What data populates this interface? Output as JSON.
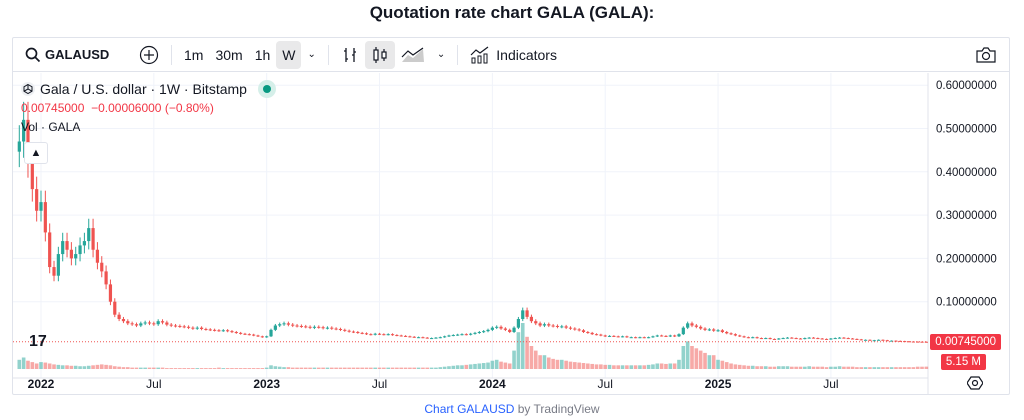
{
  "title": "Quotation rate chart GALA (GALA):",
  "toolbar": {
    "symbol": "GALAUSD",
    "intervals": [
      "1m",
      "30m",
      "1h",
      "W"
    ],
    "active_interval": "W",
    "indicators": "Indicators"
  },
  "legend": {
    "name": "Gala / U.S. dollar · 1W · Bitstamp",
    "price": "0.00745000",
    "change": "−0.00006000 (−0.80%)",
    "volume_label": "Vol · GALA"
  },
  "colors": {
    "up": "#26a69a",
    "down": "#ef5350",
    "status": "#089981"
  },
  "price_labels": {
    "last_price": "0.00745000",
    "last_volume": "5.15 M"
  },
  "credit": {
    "link": "Chart GALAUSD",
    "suffix": " by TradingView"
  },
  "chart_data": {
    "type": "candlestick",
    "y_ticks": [
      "0.60000000",
      "0.50000000",
      "0.40000000",
      "0.30000000",
      "0.20000000",
      "0.10000000"
    ],
    "y_tick_values": [
      0.6,
      0.5,
      0.4,
      0.3,
      0.2,
      0.1
    ],
    "x_ticks": [
      "2022",
      "Jul",
      "2023",
      "Jul",
      "2024",
      "Jul",
      "2025",
      "Jul"
    ],
    "x_tick_weeks": [
      0,
      26,
      52,
      78,
      104,
      130,
      156,
      182
    ],
    "first_week_offset": -5,
    "closes": [
      0.47,
      0.52,
      0.42,
      0.36,
      0.31,
      0.33,
      0.26,
      0.18,
      0.16,
      0.21,
      0.24,
      0.22,
      0.2,
      0.21,
      0.23,
      0.24,
      0.27,
      0.22,
      0.19,
      0.17,
      0.14,
      0.1,
      0.07,
      0.06,
      0.055,
      0.05,
      0.048,
      0.045,
      0.05,
      0.052,
      0.05,
      0.048,
      0.055,
      0.052,
      0.047,
      0.045,
      0.044,
      0.043,
      0.042,
      0.04,
      0.038,
      0.04,
      0.037,
      0.036,
      0.035,
      0.034,
      0.033,
      0.034,
      0.032,
      0.03,
      0.028,
      0.026,
      0.025,
      0.024,
      0.022,
      0.02,
      0.018,
      0.02,
      0.035,
      0.045,
      0.048,
      0.05,
      0.047,
      0.045,
      0.044,
      0.043,
      0.042,
      0.04,
      0.042,
      0.041,
      0.039,
      0.04,
      0.038,
      0.037,
      0.035,
      0.033,
      0.031,
      0.03,
      0.028,
      0.027,
      0.025,
      0.024,
      0.026,
      0.025,
      0.024,
      0.025,
      0.023,
      0.022,
      0.021,
      0.02,
      0.019,
      0.018,
      0.018,
      0.017,
      0.016,
      0.016,
      0.017,
      0.018,
      0.02,
      0.022,
      0.023,
      0.024,
      0.025,
      0.024,
      0.026,
      0.028,
      0.03,
      0.032,
      0.035,
      0.04,
      0.042,
      0.038,
      0.035,
      0.03,
      0.04,
      0.06,
      0.08,
      0.065,
      0.055,
      0.05,
      0.045,
      0.048,
      0.045,
      0.044,
      0.042,
      0.043,
      0.04,
      0.038,
      0.036,
      0.034,
      0.03,
      0.028,
      0.025,
      0.024,
      0.022,
      0.02,
      0.021,
      0.02,
      0.019,
      0.02,
      0.018,
      0.018,
      0.017,
      0.018,
      0.017,
      0.018,
      0.02,
      0.022,
      0.021,
      0.02,
      0.022,
      0.02,
      0.025,
      0.04,
      0.05,
      0.045,
      0.042,
      0.038,
      0.035,
      0.036,
      0.033,
      0.034,
      0.03,
      0.027,
      0.025,
      0.022,
      0.02,
      0.018,
      0.017,
      0.018,
      0.016,
      0.015,
      0.016,
      0.014,
      0.013,
      0.015,
      0.016,
      0.017,
      0.016,
      0.015,
      0.014,
      0.016,
      0.017,
      0.016,
      0.015,
      0.014,
      0.013,
      0.015,
      0.016,
      0.017,
      0.016,
      0.015,
      0.014,
      0.013,
      0.012,
      0.012,
      0.011,
      0.011,
      0.012,
      0.011,
      0.01,
      0.01,
      0.0095,
      0.009,
      0.0085,
      0.008,
      0.0078,
      0.0076,
      0.00751,
      0.00745
    ],
    "volumes": [
      20,
      25,
      18,
      15,
      12,
      15,
      14,
      12,
      10,
      9,
      8,
      8,
      7,
      7,
      6,
      6,
      7,
      8,
      9,
      10,
      9,
      8,
      6,
      5,
      4,
      4,
      3,
      3,
      3,
      3,
      3,
      3,
      3,
      3,
      2,
      2,
      2,
      2,
      2,
      2,
      2,
      2,
      2,
      2,
      2,
      2,
      3,
      2,
      2,
      2,
      2,
      2,
      2,
      2,
      2,
      2,
      2,
      3,
      8,
      6,
      5,
      4,
      4,
      3,
      3,
      3,
      3,
      3,
      3,
      3,
      3,
      3,
      3,
      3,
      3,
      3,
      3,
      3,
      3,
      3,
      3,
      3,
      3,
      3,
      3,
      3,
      3,
      3,
      3,
      3,
      3,
      3,
      3,
      3,
      3,
      3,
      3,
      4,
      5,
      6,
      7,
      8,
      8,
      9,
      10,
      11,
      12,
      13,
      14,
      18,
      20,
      16,
      14,
      12,
      40,
      80,
      100,
      70,
      50,
      40,
      30,
      30,
      25,
      22,
      20,
      20,
      18,
      16,
      15,
      14,
      13,
      12,
      11,
      10,
      10,
      9,
      9,
      8,
      8,
      8,
      8,
      8,
      8,
      8,
      8,
      9,
      10,
      12,
      12,
      11,
      12,
      12,
      20,
      50,
      60,
      50,
      45,
      40,
      35,
      30,
      30,
      20,
      18,
      15,
      12,
      10,
      9,
      8,
      7,
      7,
      6,
      6,
      6,
      5,
      5,
      6,
      6,
      6,
      5,
      5,
      5,
      5,
      6,
      5,
      5,
      5,
      4,
      5,
      5,
      6,
      5,
      5,
      5,
      4,
      4,
      4,
      4,
      4,
      4,
      4,
      4,
      4,
      4,
      4,
      4,
      4,
      4,
      5,
      5,
      5.15
    ]
  }
}
